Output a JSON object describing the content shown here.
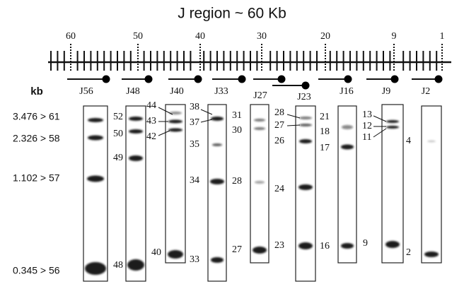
{
  "title": "J region ~ 60 Kb",
  "scale_labels": [
    "60",
    "50",
    "40",
    "30",
    "20",
    "9",
    "1"
  ],
  "unit": "kb",
  "size_markers": [
    "3.476 > 61",
    "2.326 > 58",
    "1.102 > 57",
    "0.345 > 56"
  ],
  "lanes": [
    {
      "probe": "J56",
      "bands": []
    },
    {
      "probe": "J48",
      "bands": [
        "52",
        "50",
        "49",
        "48"
      ]
    },
    {
      "probe": "J40",
      "bands": [
        "44",
        "43",
        "42",
        "40"
      ]
    },
    {
      "probe": "J33",
      "bands": [
        "38",
        "37",
        "35",
        "34",
        "33"
      ]
    },
    {
      "probe": "J27",
      "bands": [
        "31",
        "30",
        "28",
        "27"
      ]
    },
    {
      "probe": "J23",
      "bands": [
        "28",
        "27",
        "26",
        "24",
        "23"
      ]
    },
    {
      "probe": "J16",
      "bands": [
        "21",
        "18",
        "17",
        "16"
      ]
    },
    {
      "probe": "J9",
      "bands": [
        "13",
        "12",
        "11",
        "9"
      ]
    },
    {
      "probe": "J2",
      "bands": [
        "4",
        "2"
      ]
    }
  ]
}
